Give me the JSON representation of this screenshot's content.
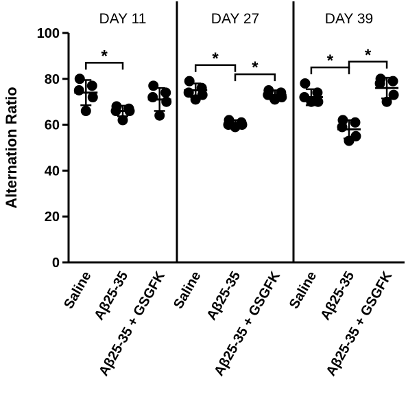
{
  "chart_data": {
    "type": "scatter",
    "ylabel": "Alternation Ratio",
    "ylim": [
      0,
      100
    ],
    "yticks": [
      "0",
      "20",
      "40",
      "60",
      "80",
      "100"
    ],
    "categories": [
      "Saline",
      "Aβ25-35",
      "Aβ25-35 + GSGFK"
    ],
    "panels": [
      {
        "title": "DAY 11",
        "groups": [
          {
            "name": "Saline",
            "points": [
              80,
              77,
              75,
              72,
              66
            ],
            "mean": 74,
            "sd": 5.5
          },
          {
            "name": "Aβ25-35",
            "points": [
              68,
              67,
              66,
              66,
              62
            ],
            "mean": 66,
            "sd": 2.3
          },
          {
            "name": "Aβ25-35 + GSGFK",
            "points": [
              77,
              74,
              72,
              70,
              64
            ],
            "mean": 71,
            "sd": 5
          }
        ],
        "significance": [
          {
            "from": 0,
            "to": 1,
            "label": "*"
          }
        ]
      },
      {
        "title": "DAY 27",
        "groups": [
          {
            "name": "Saline",
            "points": [
              79,
              76,
              74,
              73,
              71
            ],
            "mean": 75,
            "sd": 3
          },
          {
            "name": "Aβ25-35",
            "points": [
              62,
              61,
              60,
              60,
              59
            ],
            "mean": 60.5,
            "sd": 1.5
          },
          {
            "name": "Aβ25-35 + GSGFK",
            "points": [
              75,
              74,
              73,
              72,
              71
            ],
            "mean": 73,
            "sd": 2
          }
        ],
        "significance": [
          {
            "from": 0,
            "to": 1,
            "label": "*"
          },
          {
            "from": 1,
            "to": 2,
            "label": "*"
          }
        ]
      },
      {
        "title": "DAY 39",
        "groups": [
          {
            "name": "Saline",
            "points": [
              78,
              74,
              72,
              70,
              70
            ],
            "mean": 72,
            "sd": 3.5
          },
          {
            "name": "Aβ25-35",
            "points": [
              62,
              61,
              59,
              55,
              53
            ],
            "mean": 58,
            "sd": 4
          },
          {
            "name": "Aβ25-35 + GSGFK",
            "points": [
              80,
              79,
              78,
              73,
              70
            ],
            "mean": 76,
            "sd": 4.5
          }
        ],
        "significance": [
          {
            "from": 0,
            "to": 1,
            "label": "*"
          },
          {
            "from": 1,
            "to": 2,
            "label": "*"
          }
        ]
      }
    ],
    "marker_color": "#000000"
  }
}
